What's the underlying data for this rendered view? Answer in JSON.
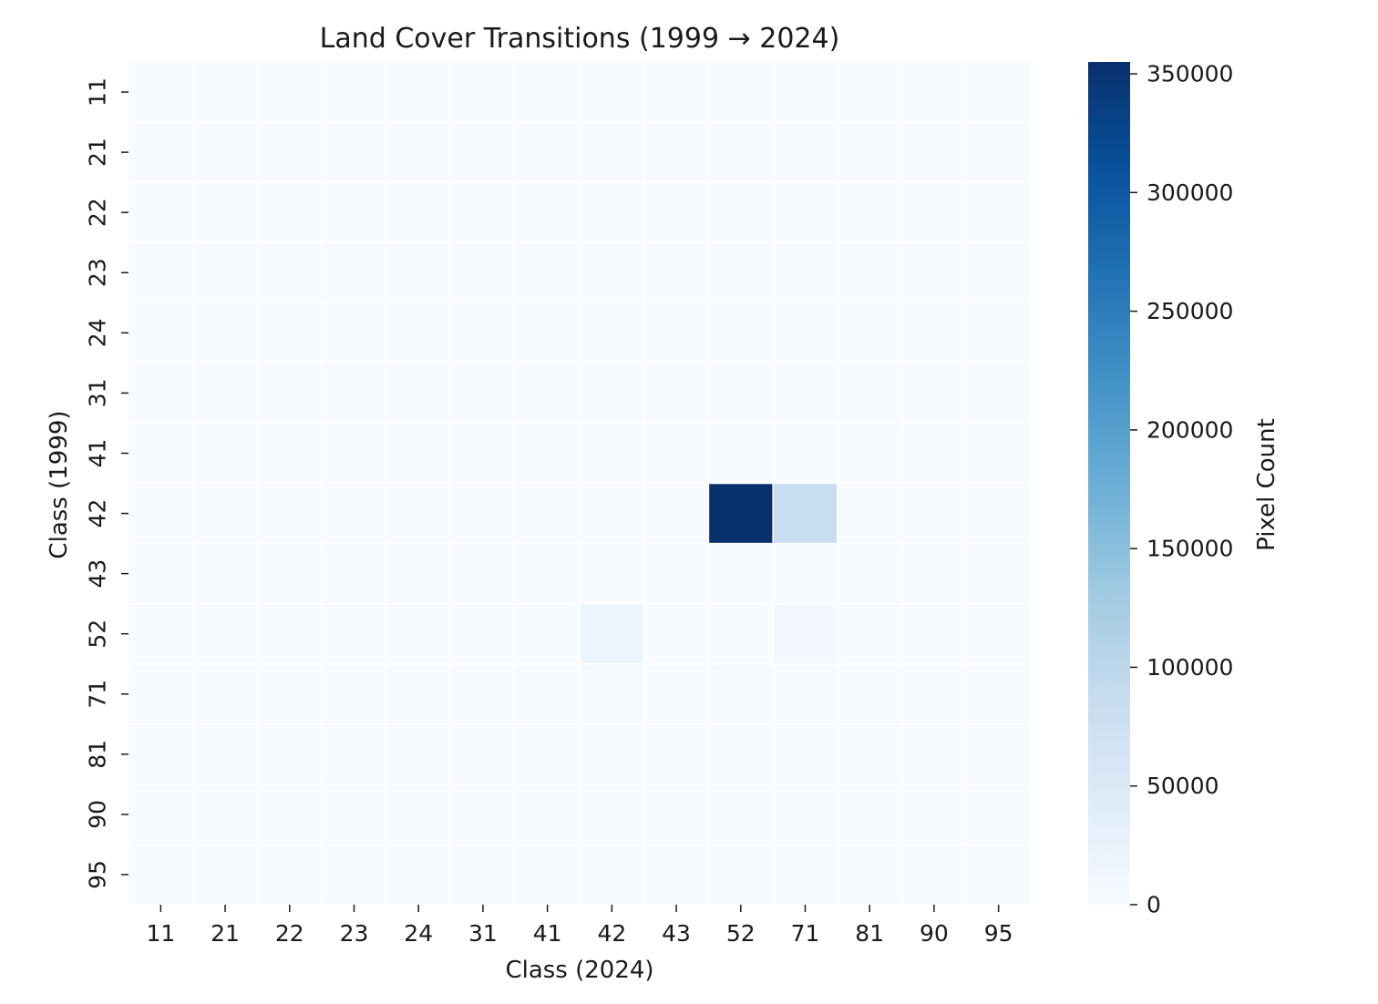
{
  "chart_data": {
    "type": "heatmap",
    "title": "Land Cover Transitions (1999 → 2024)",
    "xlabel": "Class (2024)",
    "ylabel": "Class (1999)",
    "x_categories": [
      "11",
      "21",
      "22",
      "23",
      "24",
      "31",
      "41",
      "42",
      "43",
      "52",
      "71",
      "81",
      "90",
      "95"
    ],
    "y_categories": [
      "11",
      "21",
      "22",
      "23",
      "24",
      "31",
      "41",
      "42",
      "43",
      "52",
      "71",
      "81",
      "90",
      "95"
    ],
    "values": [
      [
        10,
        10,
        10,
        10,
        10,
        10,
        10,
        10,
        10,
        10,
        10,
        10,
        10,
        10
      ],
      [
        10,
        20,
        20,
        10,
        10,
        10,
        10,
        10,
        10,
        10,
        20,
        10,
        10,
        10
      ],
      [
        10,
        20,
        20,
        10,
        10,
        10,
        10,
        10,
        10,
        10,
        20,
        10,
        10,
        10
      ],
      [
        10,
        10,
        10,
        10,
        10,
        10,
        10,
        10,
        10,
        10,
        10,
        10,
        10,
        10
      ],
      [
        10,
        10,
        10,
        10,
        10,
        10,
        10,
        10,
        10,
        10,
        10,
        10,
        10,
        10
      ],
      [
        10,
        10,
        10,
        10,
        10,
        10,
        10,
        10,
        10,
        10,
        10,
        10,
        10,
        10
      ],
      [
        10,
        10,
        10,
        10,
        10,
        10,
        10,
        10,
        10,
        10,
        10,
        10,
        10,
        10
      ],
      [
        10,
        600,
        300,
        300,
        300,
        300,
        300,
        300,
        300,
        355000,
        83000,
        300,
        300,
        300
      ],
      [
        10,
        10,
        10,
        10,
        10,
        10,
        10,
        10,
        10,
        10,
        10,
        10,
        10,
        10
      ],
      [
        10,
        800,
        400,
        400,
        400,
        400,
        400,
        18000,
        200,
        300,
        9000,
        200,
        200,
        200
      ],
      [
        10,
        300,
        200,
        200,
        200,
        200,
        200,
        2500,
        200,
        2000,
        1200,
        200,
        200,
        200
      ],
      [
        10,
        10,
        10,
        10,
        10,
        10,
        10,
        10,
        10,
        10,
        10,
        10,
        10,
        10
      ],
      [
        10,
        10,
        10,
        10,
        10,
        10,
        10,
        10,
        10,
        10,
        10,
        10,
        10,
        10
      ],
      [
        10,
        10,
        10,
        10,
        10,
        10,
        10,
        10,
        10,
        10,
        10,
        10,
        10,
        10
      ]
    ],
    "colorbar": {
      "label": "Pixel Count",
      "min": 0,
      "max": 355000,
      "ticks": [
        0,
        50000,
        100000,
        150000,
        200000,
        250000,
        300000,
        350000
      ],
      "colormap": "Blues",
      "colors": [
        "#f7fbff",
        "#deebf7",
        "#c6dbef",
        "#9ecae1",
        "#6baed6",
        "#4292c6",
        "#2171b5",
        "#08519c",
        "#08306b"
      ]
    },
    "grid": false,
    "cell_separator_color": "#ffffff"
  }
}
